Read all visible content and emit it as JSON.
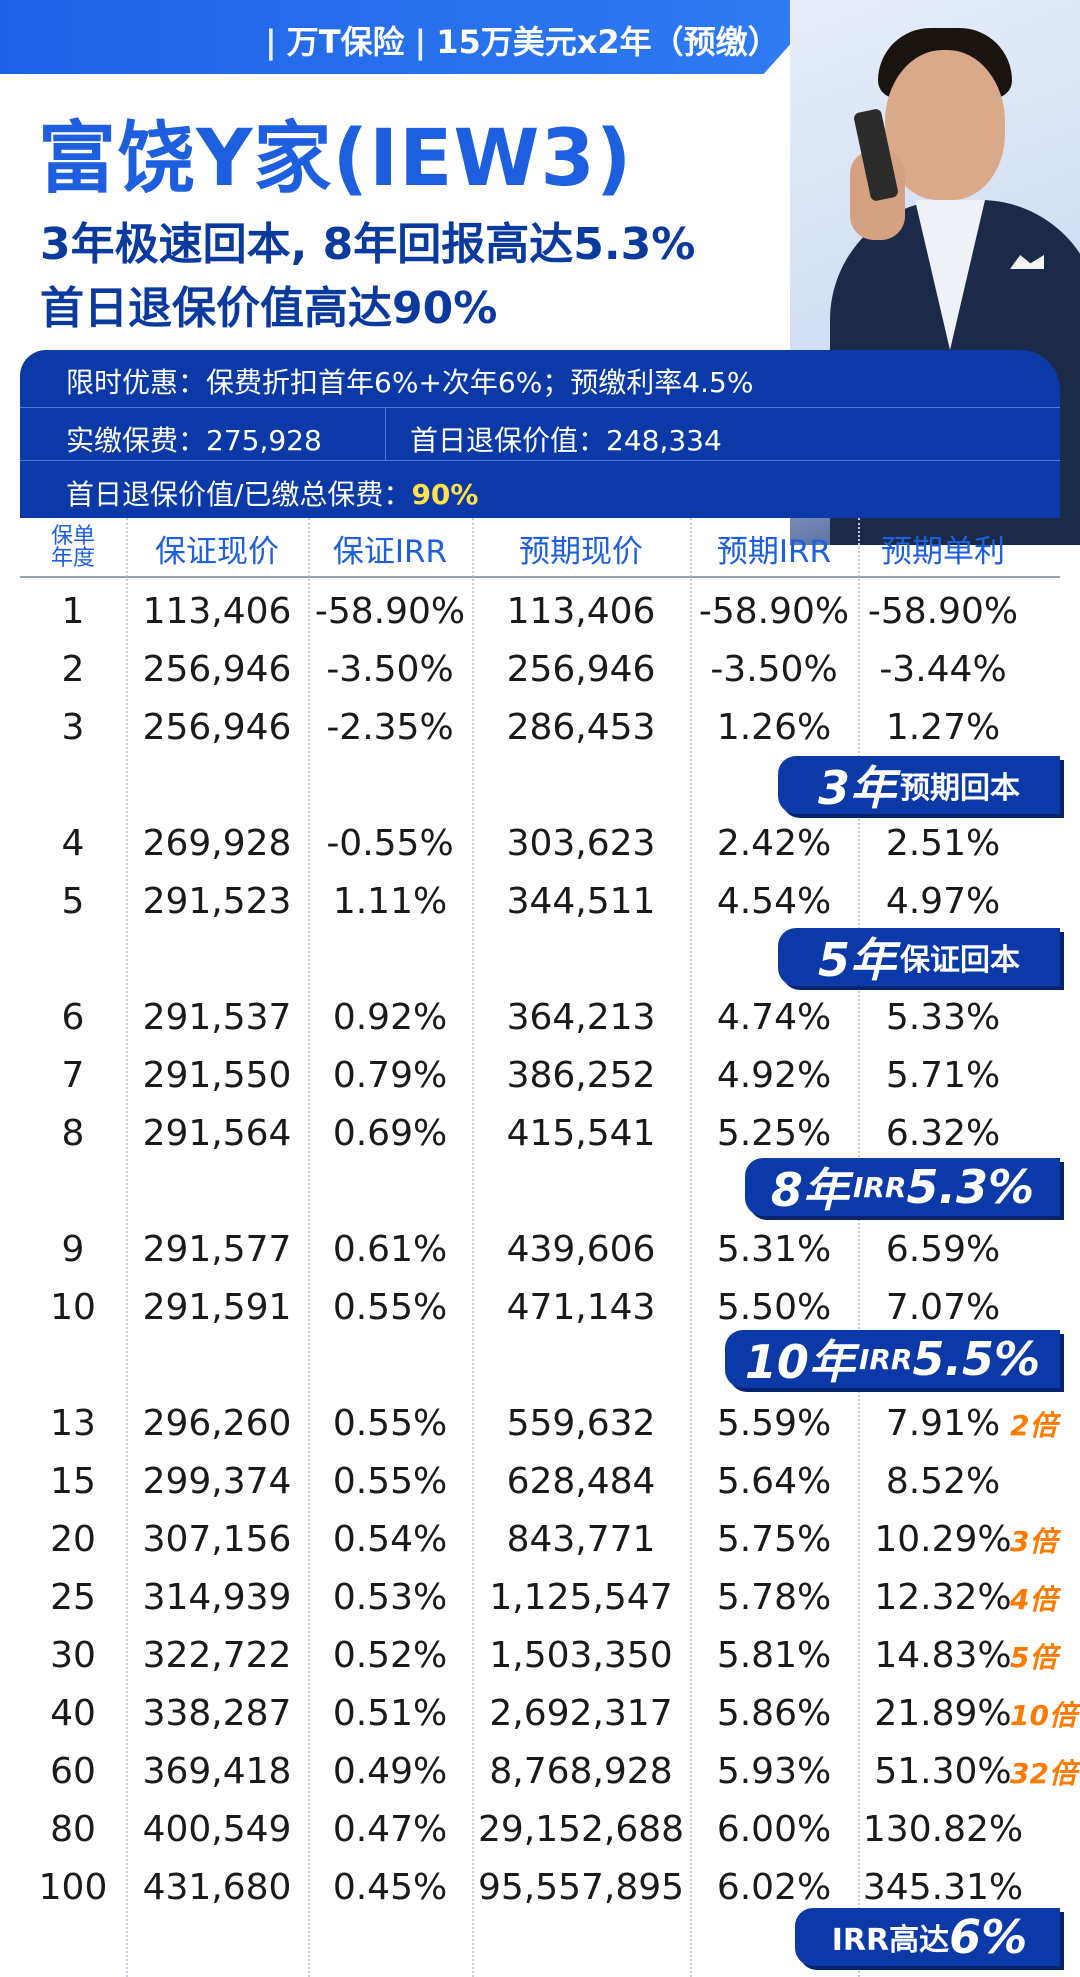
{
  "header": {
    "company": "万T保险",
    "plan": "15万美元x2年（预缴）"
  },
  "title": "富饶Y家(IEW3)",
  "subtitle1": "3年极速回本, 8年回报高达5.3%",
  "subtitle2": "首日退保价值高达90%",
  "info": {
    "promo": "限时优惠：保费折扣首年6%+次年6%；预缴利率4.5%",
    "paid_label": "实缴保费：",
    "paid_value": "275,928",
    "surrender_label": "首日退保价值：",
    "surrender_value": "248,334",
    "ratio_label": "首日退保价值/已缴总保费：",
    "ratio_value": "90%"
  },
  "table": {
    "headers": [
      "保单年度",
      "保证现价",
      "保证IRR",
      "预期现价",
      "预期IRR",
      "预期单利"
    ],
    "year_header_line1": "保单",
    "year_header_line2": "年度",
    "rows": [
      [
        "1",
        "113,406",
        "-58.90%",
        "113,406",
        "-58.90%",
        "-58.90%"
      ],
      [
        "2",
        "256,946",
        "-3.50%",
        "256,946",
        "-3.50%",
        "-3.44%"
      ],
      [
        "3",
        "256,946",
        "-2.35%",
        "286,453",
        "1.26%",
        "1.27%"
      ],
      [
        "4",
        "269,928",
        "-0.55%",
        "303,623",
        "2.42%",
        "2.51%"
      ],
      [
        "5",
        "291,523",
        "1.11%",
        "344,511",
        "4.54%",
        "4.97%"
      ],
      [
        "6",
        "291,537",
        "0.92%",
        "364,213",
        "4.74%",
        "5.33%"
      ],
      [
        "7",
        "291,550",
        "0.79%",
        "386,252",
        "4.92%",
        "5.71%"
      ],
      [
        "8",
        "291,564",
        "0.69%",
        "415,541",
        "5.25%",
        "6.32%"
      ],
      [
        "9",
        "291,577",
        "0.61%",
        "439,606",
        "5.31%",
        "6.59%"
      ],
      [
        "10",
        "291,591",
        "0.55%",
        "471,143",
        "5.50%",
        "7.07%"
      ],
      [
        "13",
        "296,260",
        "0.55%",
        "559,632",
        "5.59%",
        "7.91%"
      ],
      [
        "15",
        "299,374",
        "0.55%",
        "628,484",
        "5.64%",
        "8.52%"
      ],
      [
        "20",
        "307,156",
        "0.54%",
        "843,771",
        "5.75%",
        "10.29%"
      ],
      [
        "25",
        "314,939",
        "0.53%",
        "1,125,547",
        "5.78%",
        "12.32%"
      ],
      [
        "30",
        "322,722",
        "0.52%",
        "1,503,350",
        "5.81%",
        "14.83%"
      ],
      [
        "40",
        "338,287",
        "0.51%",
        "2,692,317",
        "5.86%",
        "21.89%"
      ],
      [
        "60",
        "369,418",
        "0.49%",
        "8,768,928",
        "5.93%",
        "51.30%"
      ],
      [
        "80",
        "400,549",
        "0.47%",
        "29,152,688",
        "6.00%",
        "130.82%"
      ],
      [
        "100",
        "431,680",
        "0.45%",
        "95,557,895",
        "6.02%",
        "345.31%"
      ]
    ],
    "multipliers": {
      "13": "2倍",
      "20": "3倍",
      "25": "4倍",
      "30": "5倍",
      "40": "10倍",
      "60": "32倍"
    }
  },
  "badges": {
    "b3_num": "3年",
    "b3_text": "预期回本",
    "b5_num": "5年",
    "b5_text": "保证回本",
    "b8_num": "8年",
    "b8_irr": "IRR",
    "b8_val": "5.3%",
    "b10_num": "10年",
    "b10_irr": "IRR",
    "b10_val": "5.5%",
    "bfinal_text": "IRR高达",
    "bfinal_val": "6%"
  },
  "colors": {
    "brand_blue": "#1e5fe0",
    "panel_blue": "#0b3aa8",
    "highlight_yellow": "#ffe24a",
    "multiplier_orange": "#ff7a00"
  }
}
